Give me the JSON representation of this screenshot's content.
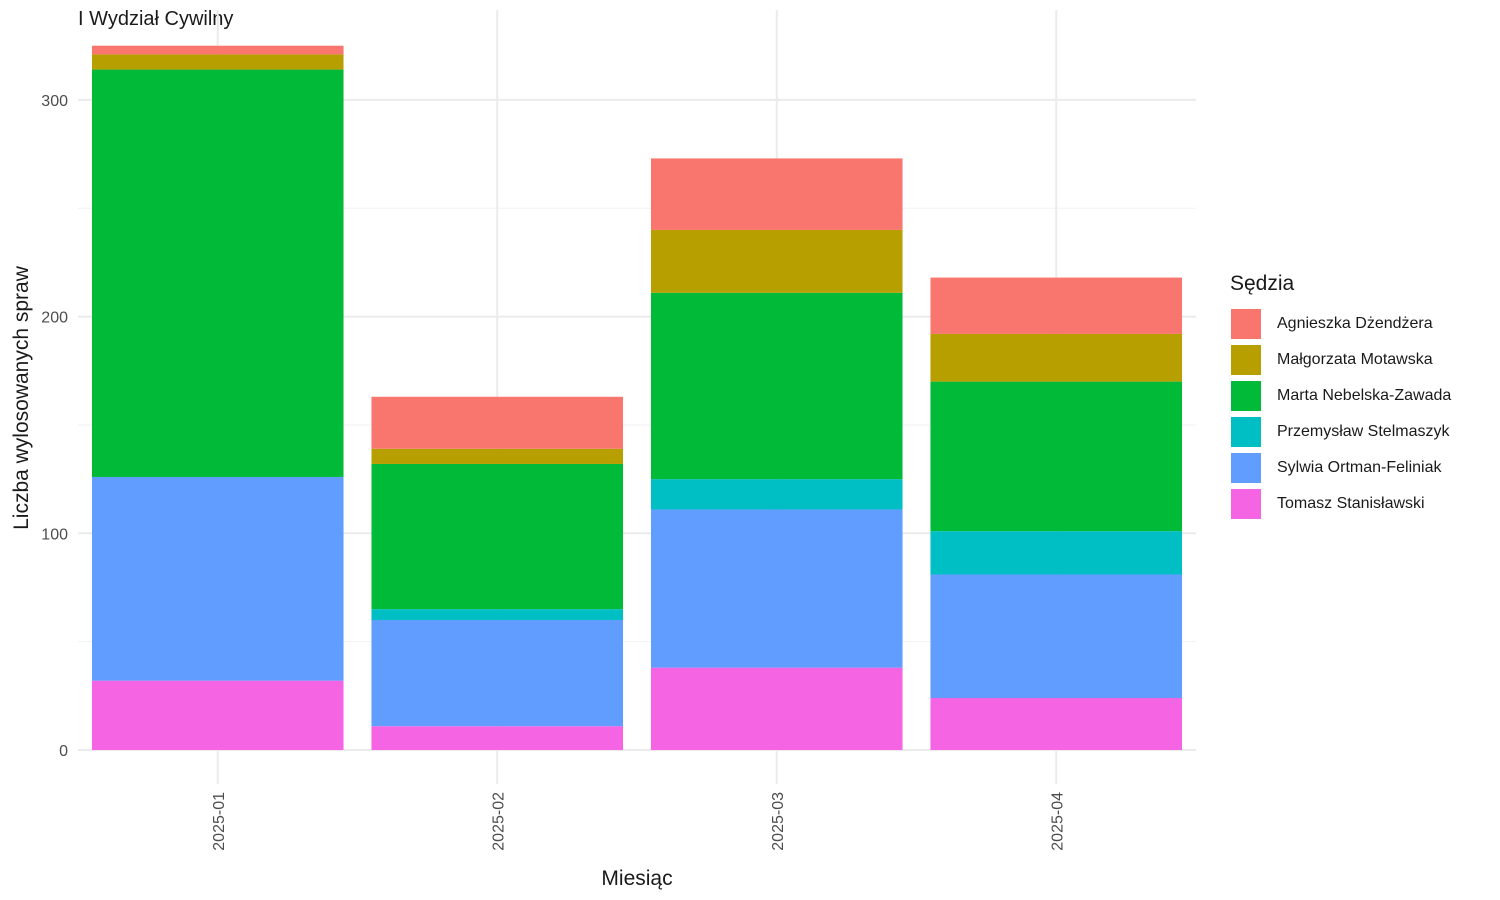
{
  "chart_data": {
    "type": "bar",
    "stacked": true,
    "title": "I Wydział Cywilny",
    "xlabel": "Miesiąc",
    "ylabel": "Liczba wylosowanych spraw",
    "categories": [
      "2025-01",
      "2025-02",
      "2025-03",
      "2025-04"
    ],
    "ylim": [
      0,
      325
    ],
    "yticks": [
      0,
      100,
      200,
      300
    ],
    "grid": true,
    "legend_title": "Sędzia",
    "legend_position": "right",
    "series": [
      {
        "name": "Tomasz Stanisławski",
        "color": "#F564E3",
        "values": [
          32,
          11,
          38,
          24
        ]
      },
      {
        "name": "Sylwia Ortman-Feliniak",
        "color": "#619CFF",
        "values": [
          94,
          49,
          73,
          57
        ]
      },
      {
        "name": "Przemysław Stelmaszyk",
        "color": "#00BFC4",
        "values": [
          0,
          5,
          14,
          20
        ]
      },
      {
        "name": "Marta Nebelska-Zawada",
        "color": "#00BA38",
        "values": [
          188,
          67,
          86,
          69
        ]
      },
      {
        "name": "Małgorzata Motawska",
        "color": "#B79F00",
        "values": [
          7,
          7,
          29,
          22
        ]
      },
      {
        "name": "Agnieszka Dżendżera",
        "color": "#F8766D",
        "values": [
          4,
          24,
          33,
          26
        ]
      }
    ],
    "legend_order": [
      "Agnieszka Dżendżera",
      "Małgorzata Motawska",
      "Marta Nebelska-Zawada",
      "Przemysław Stelmaszyk",
      "Sylwia Ortman-Feliniak",
      "Tomasz Stanisławski"
    ]
  }
}
